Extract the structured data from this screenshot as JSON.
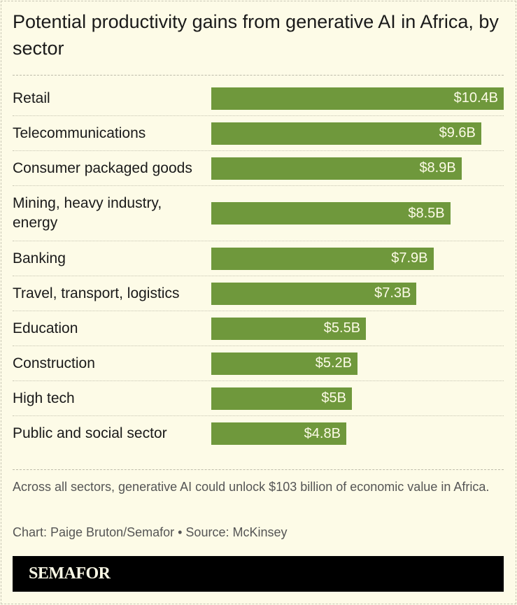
{
  "chart_data": {
    "type": "bar",
    "orientation": "horizontal",
    "title": "Potential productivity gains from generative AI in Africa, by sector",
    "categories": [
      "Retail",
      "Telecommunications",
      "Consumer packaged goods",
      "Mining, heavy industry, energy",
      "Banking",
      "Travel, transport, logistics",
      "Education",
      "Construction",
      "High tech",
      "Public and social sector"
    ],
    "values": [
      10.4,
      9.6,
      8.9,
      8.5,
      7.9,
      7.3,
      5.5,
      5.2,
      5,
      4.8
    ],
    "data_labels": [
      "$10.4B",
      "$9.6B",
      "$8.9B",
      "$8.5B",
      "$7.9B",
      "$7.3B",
      "$5.5B",
      "$5.2B",
      "$5B",
      "$4.8B"
    ],
    "unit": "billion USD",
    "bar_color": "#6f983c",
    "grid": false
  },
  "note": "Across all sectors, generative AI could unlock $103 billion of economic value in Africa.",
  "credit": "Chart: Paige Bruton/Semafor • Source: McKinsey",
  "brand": "SEMAFOR"
}
